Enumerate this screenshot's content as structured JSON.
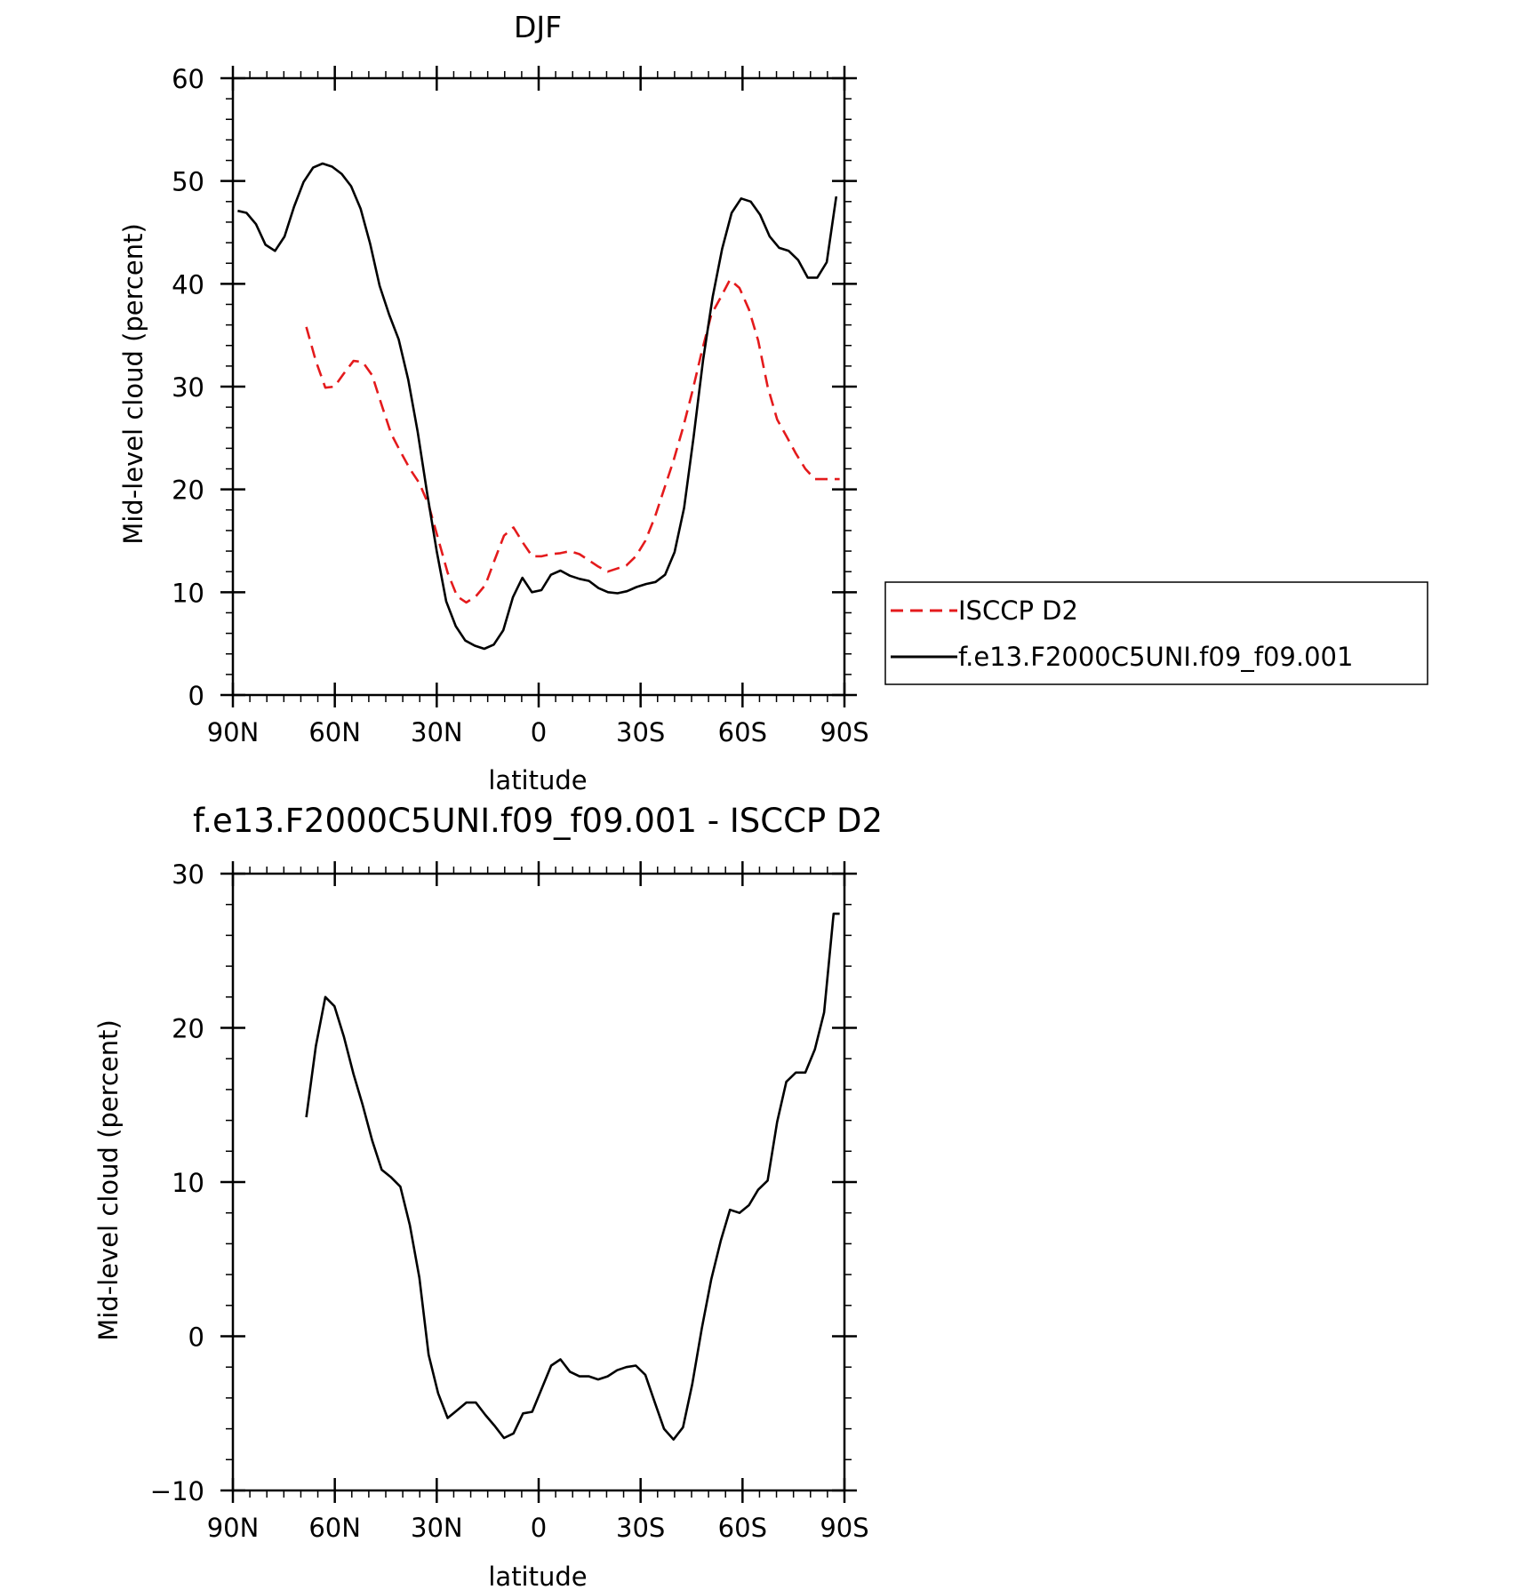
{
  "chart_data": [
    {
      "type": "line",
      "title": "DJF",
      "xlabel": "latitude",
      "ylabel": "Mid-level cloud (percent)",
      "xlim": [
        -90,
        90
      ],
      "ylim": [
        0,
        60
      ],
      "x_ticks": [
        -90,
        -60,
        -30,
        0,
        30,
        60,
        90
      ],
      "x_tick_labels": [
        "90N",
        "60N",
        "30N",
        "0",
        "30S",
        "60S",
        "90S"
      ],
      "y_ticks": [
        0,
        10,
        20,
        30,
        40,
        50,
        60
      ],
      "y_tick_labels": [
        "0",
        "10",
        "20",
        "30",
        "40",
        "50",
        "60"
      ],
      "legend_position": "right",
      "series": [
        {
          "name": "ISCCP D2",
          "color": "#e41a1c",
          "dash": "dashed",
          "x": [
            -68.4,
            -65.6,
            -62.8,
            -60.1,
            -57.3,
            -54.5,
            -51.8,
            -49,
            -46.2,
            -43.4,
            -40.7,
            -37.9,
            -35.1,
            -32.4,
            -29.6,
            -26.8,
            -24,
            -21.3,
            -18.5,
            -15.7,
            -13,
            -10.2,
            -7.4,
            -4.6,
            -1.9,
            0.9,
            3.7,
            6.4,
            9.2,
            12,
            14.8,
            17.5,
            20.3,
            23.1,
            25.8,
            28.6,
            31.4,
            34.2,
            36.9,
            39.7,
            42.5,
            45.2,
            48,
            50.8,
            53.6,
            56.3,
            59.1,
            61.9,
            64.6,
            67.4,
            70.2,
            72.9,
            75.7,
            78.5,
            81.3,
            84,
            86.8,
            88.6
          ],
          "values": [
            35.8,
            32.5,
            29.9,
            30.0,
            31.3,
            32.5,
            32.4,
            31.1,
            28.2,
            25.4,
            23.7,
            22.0,
            20.6,
            18.5,
            15.2,
            11.9,
            9.6,
            9.0,
            9.6,
            10.7,
            13.1,
            15.5,
            16.3,
            14.8,
            13.5,
            13.5,
            13.7,
            13.8,
            14.0,
            13.7,
            13.1,
            12.5,
            12.0,
            12.3,
            12.6,
            13.5,
            15.0,
            17.3,
            20.0,
            22.8,
            26.0,
            29.5,
            33.4,
            37.0,
            38.7,
            40.4,
            39.6,
            37.5,
            34.5,
            30.0,
            26.8,
            25.2,
            23.5,
            22.0,
            21.0,
            21.0,
            21.0,
            21.0
          ]
        },
        {
          "name": "f.e13.F2000C5UNI.f09_f09.001",
          "color": "#000000",
          "dash": "solid",
          "x": [
            -88.6,
            -86,
            -83.2,
            -80.4,
            -77.6,
            -74.8,
            -72,
            -69.2,
            -66.4,
            -63.6,
            -60.8,
            -58,
            -55.2,
            -52.4,
            -49.6,
            -46.8,
            -44,
            -41.2,
            -38.4,
            -35.6,
            -32.8,
            -30,
            -27.2,
            -24.4,
            -21.6,
            -18.8,
            -16,
            -13.2,
            -10.4,
            -7.6,
            -4.8,
            -2,
            0.8,
            3.6,
            6.4,
            9.2,
            12,
            14.8,
            17.6,
            20.4,
            23.2,
            26,
            28.8,
            31.6,
            34.4,
            37.2,
            40,
            42.8,
            45.6,
            48.4,
            51.2,
            54,
            56.8,
            59.6,
            62.4,
            65.2,
            68,
            70.8,
            73.6,
            76.4,
            79.2,
            82,
            84.8,
            87.6
          ],
          "values": [
            47.1,
            46.9,
            45.8,
            43.8,
            43.2,
            44.6,
            47.5,
            49.9,
            51.3,
            51.7,
            51.4,
            50.7,
            49.5,
            47.3,
            43.9,
            39.8,
            37.0,
            34.6,
            30.7,
            25.6,
            19.6,
            14.0,
            9.1,
            6.7,
            5.3,
            4.8,
            4.5,
            4.9,
            6.3,
            9.5,
            11.4,
            10.0,
            10.2,
            11.7,
            12.1,
            11.6,
            11.3,
            11.1,
            10.4,
            10.0,
            9.9,
            10.1,
            10.5,
            10.8,
            11.0,
            11.7,
            13.9,
            18.2,
            25.1,
            32.6,
            38.7,
            43.4,
            46.9,
            48.3,
            48.0,
            46.7,
            44.6,
            43.5,
            43.2,
            42.3,
            40.6,
            40.6,
            42.1,
            48.5
          ]
        }
      ]
    },
    {
      "type": "line",
      "title": "f.e13.F2000C5UNI.f09_f09.001 - ISCCP D2",
      "xlabel": "latitude",
      "ylabel": "Mid-level cloud (percent)",
      "xlim": [
        -90,
        90
      ],
      "ylim": [
        -10,
        30
      ],
      "x_ticks": [
        -90,
        -60,
        -30,
        0,
        30,
        60,
        90
      ],
      "x_tick_labels": [
        "90N",
        "60N",
        "30N",
        "0",
        "30S",
        "60S",
        "90S"
      ],
      "y_ticks": [
        -10,
        0,
        10,
        20,
        30
      ],
      "y_tick_labels": [
        "−10",
        "0",
        "10",
        "20",
        "30"
      ],
      "series": [
        {
          "color": "#000000",
          "dash": "solid",
          "x": [
            -68.4,
            -65.6,
            -62.8,
            -60.1,
            -57.3,
            -54.5,
            -51.8,
            -49,
            -46.2,
            -43.4,
            -40.7,
            -37.9,
            -35.1,
            -32.4,
            -29.6,
            -26.8,
            -24,
            -21.3,
            -18.5,
            -15.7,
            -13,
            -10.2,
            -7.4,
            -4.6,
            -1.9,
            0.9,
            3.7,
            6.4,
            9.2,
            12,
            14.8,
            17.5,
            20.3,
            23.1,
            25.8,
            28.6,
            31.4,
            34.2,
            36.9,
            39.7,
            42.5,
            45.2,
            48,
            50.8,
            53.6,
            56.3,
            59.1,
            61.9,
            64.6,
            67.4,
            70.2,
            72.9,
            75.7,
            78.5,
            81.3,
            84,
            86.8,
            88.6
          ],
          "values": [
            14.2,
            18.8,
            22.0,
            21.4,
            19.4,
            17.0,
            15.0,
            12.7,
            10.8,
            10.3,
            9.7,
            7.2,
            3.8,
            -1.2,
            -3.7,
            -5.3,
            -4.8,
            -4.3,
            -4.3,
            -5.1,
            -5.8,
            -6.6,
            -6.3,
            -5.0,
            -4.9,
            -3.4,
            -1.9,
            -1.5,
            -2.3,
            -2.6,
            -2.6,
            -2.8,
            -2.6,
            -2.2,
            -2.0,
            -1.9,
            -2.5,
            -4.3,
            -6.0,
            -6.7,
            -5.9,
            -3.1,
            0.5,
            3.7,
            6.2,
            8.2,
            8.0,
            8.5,
            9.5,
            10.1,
            13.9,
            16.5,
            17.1,
            17.1,
            18.6,
            21.0,
            27.4,
            27.4
          ]
        }
      ]
    }
  ]
}
